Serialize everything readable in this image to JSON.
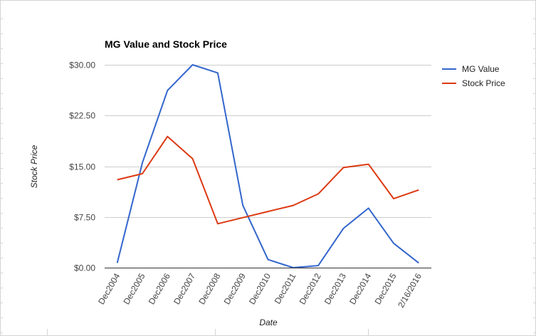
{
  "chart_data": {
    "type": "line",
    "title": "MG Value and Stock Price",
    "xlabel": "Date",
    "ylabel": "Stock Price",
    "categories": [
      "Dec2004",
      "Dec2005",
      "Dec2006",
      "Dec2007",
      "Dec2008",
      "Dec2009",
      "Dec2010",
      "Dec2011",
      "Dec2012",
      "Dec2013",
      "Dec2014",
      "Dec2015",
      "2/16/2016"
    ],
    "y_ticks": [
      "$0.00",
      "$7.50",
      "$15.00",
      "$22.50",
      "$30.00"
    ],
    "ylim": [
      0,
      30
    ],
    "grid": true,
    "legend_position": "right",
    "series": [
      {
        "name": "MG Value",
        "color": "#3366cc",
        "values": [
          0.7,
          15.5,
          26.2,
          30.0,
          28.8,
          9.2,
          1.2,
          0.0,
          0.3,
          5.8,
          8.8,
          3.6,
          0.7
        ]
      },
      {
        "name": "Stock Price",
        "color": "#dc3912",
        "values": [
          13.0,
          13.9,
          19.4,
          16.1,
          6.5,
          7.4,
          8.3,
          9.2,
          10.9,
          14.8,
          15.3,
          10.2,
          11.5
        ]
      }
    ]
  }
}
